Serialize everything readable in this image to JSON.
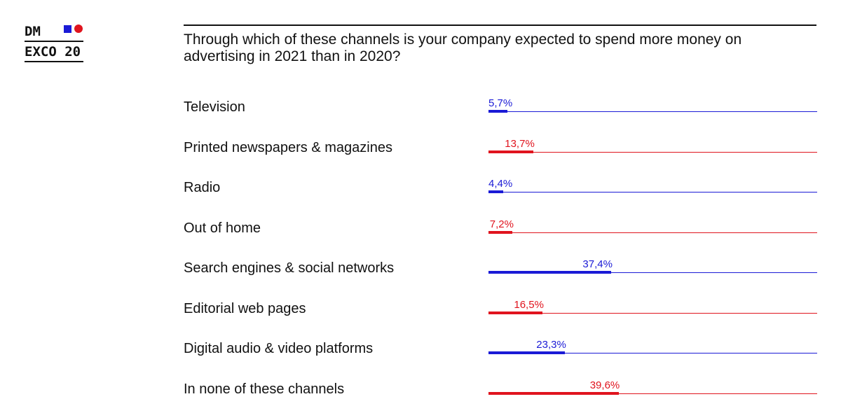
{
  "logo": {
    "line1": "DM",
    "line2": "EXCO 20",
    "square_color": "#1a1ad6",
    "dot_color": "#e0141e"
  },
  "question": "Through which of these channels is your company expected to spend more money on advertising in 2021 than in 2020?",
  "colors": {
    "blue": "#1a1ad6",
    "red": "#e0141e"
  },
  "chart_data": {
    "type": "bar",
    "orientation": "horizontal",
    "title": "Through which of these channels is your company expected to spend more money on advertising in 2021 than in 2020?",
    "categories": [
      "Television",
      "Printed newspapers & magazines",
      "Radio",
      "Out of home",
      "Search engines & social networks",
      "Editorial web pages",
      "Digital audio & video platforms",
      "In none of these channels"
    ],
    "values": [
      5.7,
      13.7,
      4.4,
      7.2,
      37.4,
      16.5,
      23.3,
      39.6
    ],
    "value_labels": [
      "5,7%",
      "13,7%",
      "4,4%",
      "7,2%",
      "37,4%",
      "16,5%",
      "23,3%",
      "39,6%"
    ],
    "bar_colors": [
      "blue",
      "red",
      "blue",
      "red",
      "blue",
      "red",
      "blue",
      "red"
    ],
    "xlim": [
      0,
      100
    ],
    "grid": false,
    "legend": "none"
  }
}
